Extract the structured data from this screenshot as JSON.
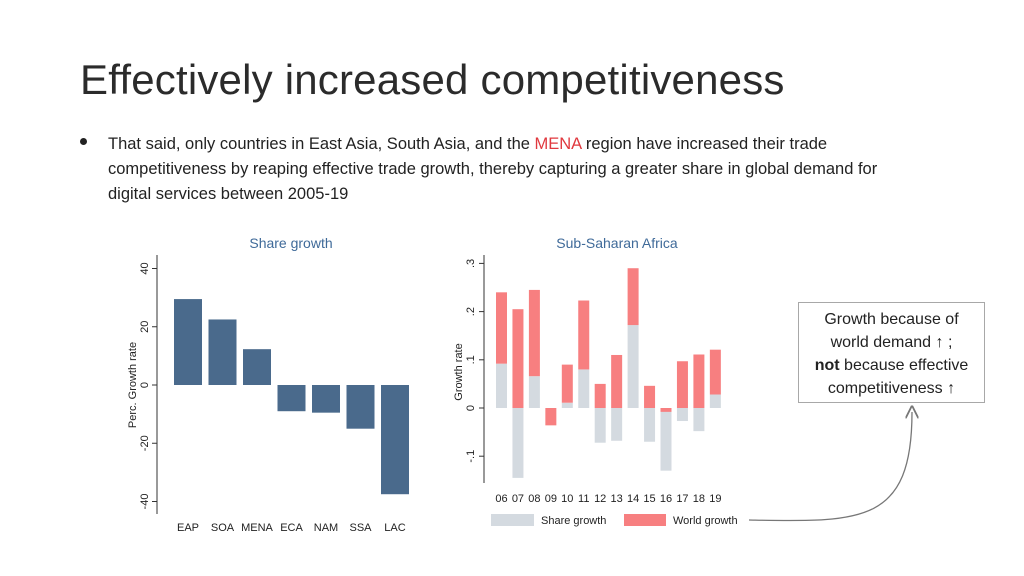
{
  "slide": {
    "title": "Effectively increased competitiveness",
    "bullet": {
      "part1": "That said, only countries in East Asia, South Asia, and the ",
      "highlight": "MENA",
      "part2": " region have increased their trade competitiveness by reaping effective trade growth, thereby capturing a greater share in global demand for digital services between 2005-19"
    },
    "callout": {
      "line1": "Growth because of",
      "line2": "world demand ↑ ;",
      "bold": "not",
      "line3_rest": " because effective",
      "line4": "competitiveness ↑"
    }
  },
  "colors": {
    "bar_blue": "#4a6a8c",
    "share_gray": "#d4dae0",
    "world_red": "#f77f80",
    "title_blue": "#3f6a99",
    "highlight_red": "#e0383e"
  },
  "chart_data": [
    {
      "type": "bar",
      "title": "Share growth",
      "ylabel": "Perc. Growth rate",
      "xlabel": "",
      "categories": [
        "EAP",
        "SOA",
        "MENA",
        "ECA",
        "NAM",
        "SSA",
        "LAC"
      ],
      "values": [
        29.5,
        22.5,
        12.3,
        -9,
        -9.5,
        -15,
        -37.5
      ],
      "ylim": [
        -40,
        40
      ],
      "yticks": [
        -40,
        -20,
        0,
        20,
        40
      ],
      "grid": false
    },
    {
      "type": "bar",
      "stacked": true,
      "title": "Sub-Saharan Africa",
      "ylabel": "Growth rate",
      "xlabel": "",
      "categories": [
        "06",
        "07",
        "08",
        "09",
        "10",
        "11",
        "12",
        "13",
        "14",
        "15",
        "16",
        "17",
        "18",
        "19"
      ],
      "series": [
        {
          "name": "Share growth",
          "values": [
            0.092,
            -0.145,
            0.066,
            0.0,
            0.011,
            0.08,
            -0.072,
            -0.068,
            0.172,
            -0.07,
            -0.13,
            -0.027,
            -0.048,
            0.028
          ]
        },
        {
          "name": "World growth",
          "values": [
            0.148,
            0.205,
            0.179,
            -0.036,
            0.079,
            0.143,
            0.05,
            0.11,
            0.118,
            0.046,
            -0.008,
            0.097,
            0.111,
            0.093
          ]
        }
      ],
      "ylim": [
        -0.15,
        0.3
      ],
      "yticks": [
        -0.1,
        0,
        0.1,
        0.2,
        0.3
      ],
      "ytick_labels": [
        "-.1",
        "0",
        ".1",
        ".2",
        ".3"
      ],
      "legend": "bottom"
    }
  ]
}
